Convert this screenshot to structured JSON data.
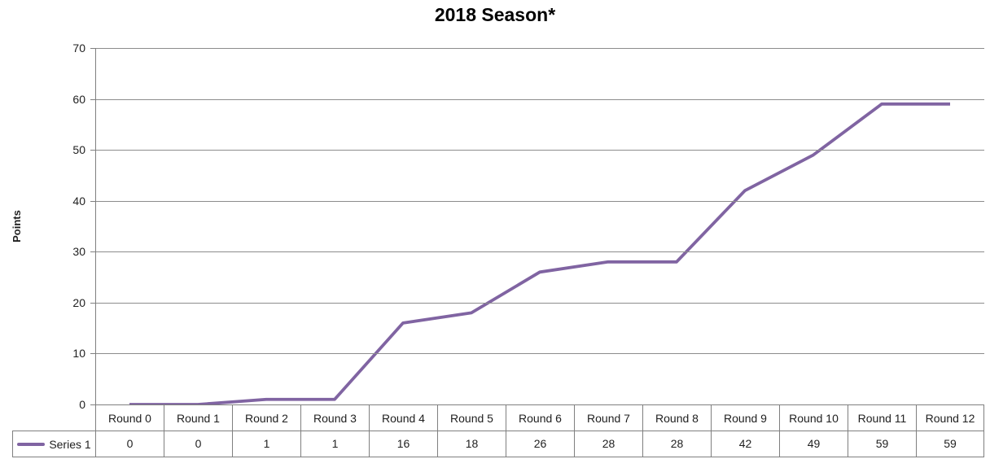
{
  "chart_data": {
    "type": "line",
    "title": "2018 Season*",
    "xlabel": "",
    "ylabel": "Points",
    "categories": [
      "Round 0",
      "Round 1",
      "Round 2",
      "Round 3",
      "Round 4",
      "Round 5",
      "Round 6",
      "Round 7",
      "Round 8",
      "Round 9",
      "Round 10",
      "Round 11",
      "Round 12"
    ],
    "series": [
      {
        "name": "Series 1",
        "color": "#8064A2",
        "values": [
          0,
          0,
          1,
          1,
          16,
          18,
          26,
          28,
          28,
          42,
          49,
          59,
          59
        ]
      }
    ],
    "ylim": [
      0,
      70
    ],
    "yticks": [
      0,
      10,
      20,
      30,
      40,
      50,
      60,
      70
    ],
    "grid": true,
    "legend_position": "data-table-left"
  },
  "colors": {
    "series_line": "#8064A2",
    "gridline": "#8c8c8c",
    "axis": "#7f7f7f",
    "table_border": "#7f7f7f",
    "text": "#1f1f1f"
  }
}
